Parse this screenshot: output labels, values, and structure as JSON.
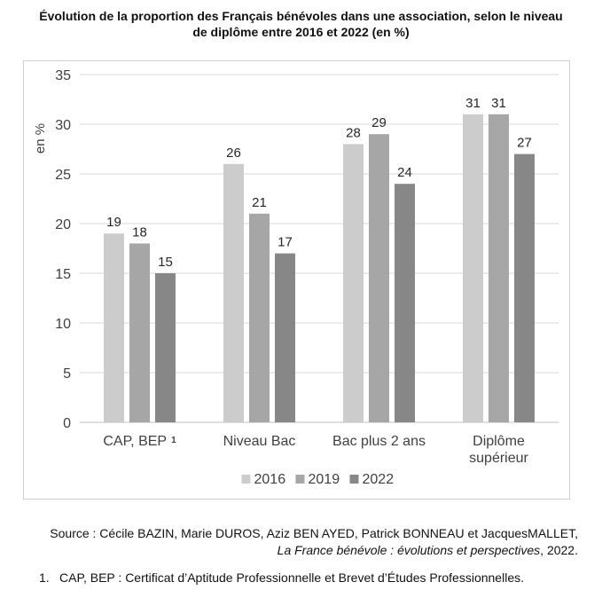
{
  "chart_data": {
    "type": "bar",
    "title": "Évolution de la proportion des Français bénévoles dans une association, selon le niveau de diplôme entre 2016 et 2022 (en %)",
    "title_lines": [
      "Évolution de la proportion des Français bénévoles dans une association, selon le niveau",
      "de diplôme entre 2016 et 2022 (en %)"
    ],
    "xlabel": "",
    "ylabel": "en %",
    "ylim": [
      0,
      35
    ],
    "yticks": [
      "0",
      "5",
      "10",
      "15",
      "20",
      "25",
      "30",
      "35"
    ],
    "grid": true,
    "legend_position": "bottom",
    "categories": [
      {
        "lines": [
          "CAP, BEP"
        ],
        "superscript": "1"
      },
      {
        "lines": [
          "Niveau Bac"
        ],
        "superscript": ""
      },
      {
        "lines": [
          "Bac plus 2 ans"
        ],
        "superscript": ""
      },
      {
        "lines": [
          "Diplôme",
          "supérieur"
        ],
        "superscript": ""
      }
    ],
    "series": [
      {
        "name": "2016",
        "color": "#cccccc",
        "values": [
          19,
          26,
          28,
          31
        ]
      },
      {
        "name": "2019",
        "color": "#a6a6a6",
        "values": [
          18,
          21,
          29,
          31
        ]
      },
      {
        "name": "2022",
        "color": "#878787",
        "values": [
          15,
          17,
          24,
          27
        ]
      }
    ]
  },
  "source": {
    "prefix": "Source : Cécile BAZIN, Marie DUROS, Aziz BEN AYED, Patrick BONNEAU et JacquesMALLET,",
    "book_title": "La France bénévole : évolutions et perspectives",
    "suffix": ", 2022."
  },
  "footnote": {
    "number": "1.",
    "text": "CAP, BEP : Certificat d’Aptitude Professionnelle et Brevet d’Études Professionnelles."
  }
}
